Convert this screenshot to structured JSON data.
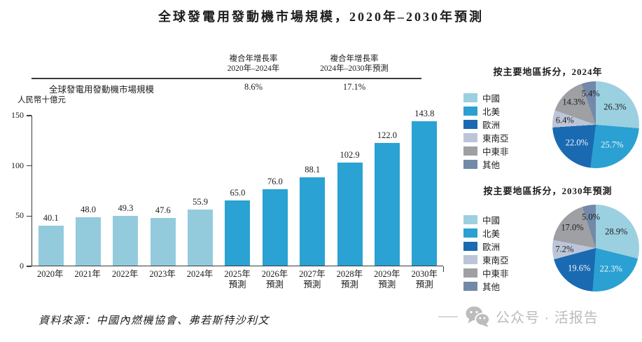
{
  "page_title": "全球發電用發動機市場規模，2020年–2030年預測",
  "cagr_table": {
    "row_label": "全球發電用發動機市場規模",
    "col1_line1": "複合年增長率",
    "col1_line2": "2020年–2024年",
    "col1_value": "8.6%",
    "col2_line1": "複合年增長率",
    "col2_line2": "2024年–2030年預測",
    "col2_value": "17.1%"
  },
  "regions": [
    {
      "name": "中國",
      "color": "#9BD0E0",
      "label_text": "dark"
    },
    {
      "name": "北美",
      "color": "#2BA0D2",
      "label_text": "light"
    },
    {
      "name": "歐洲",
      "color": "#1A6AB2",
      "label_text": "light"
    },
    {
      "name": "東南亞",
      "color": "#BCC5D8",
      "label_text": "dark"
    },
    {
      "name": "中東非",
      "color": "#9EA0A3",
      "label_text": "dark"
    },
    {
      "name": "其他",
      "color": "#7389A9",
      "label_text": "dark"
    }
  ],
  "chart_data": [
    {
      "type": "bar",
      "title": "全球發電用發動機市場規模，2020年–2030年預測",
      "xlabel": "",
      "ylabel": "人民幣十億元",
      "ylim": [
        0,
        150
      ],
      "y_ticks": [
        0,
        50,
        100,
        150
      ],
      "grid": false,
      "categories": [
        "2020年",
        "2021年",
        "2022年",
        "2023年",
        "2024年",
        "2025年預測",
        "2026年預測",
        "2027年預測",
        "2028年預測",
        "2029年預測",
        "2030年預測"
      ],
      "values": [
        40.1,
        48.0,
        49.3,
        47.6,
        55.9,
        65.0,
        76.0,
        88.1,
        102.9,
        122.0,
        143.8
      ],
      "forecast_from_index": 5,
      "colors": {
        "historical": "#93CBDD",
        "forecast": "#2AA2D3"
      }
    },
    {
      "type": "pie",
      "title": "按主要地區拆分，2024年",
      "legend_position": "left",
      "labels": [
        "中國",
        "北美",
        "歐洲",
        "東南亞",
        "中東非",
        "其他"
      ],
      "values": [
        26.3,
        25.7,
        22.0,
        6.4,
        14.3,
        5.4
      ]
    },
    {
      "type": "pie",
      "title": "按主要地區拆分，2030年預測",
      "legend_position": "left",
      "labels": [
        "中國",
        "北美",
        "歐洲",
        "東南亞",
        "中東非",
        "其他"
      ],
      "values": [
        28.9,
        22.3,
        19.6,
        7.2,
        17.0,
        5.0
      ]
    }
  ],
  "footer_source": "資料來源：中國內燃機協會、弗若斯特沙利文",
  "watermark_text": "公众号 · 活报告",
  "colors": {
    "axis": "#3a3a3a",
    "text_dark": "#1c1c1c",
    "text_light": "#f4f9fc",
    "watermark": "#bcbcbc"
  }
}
